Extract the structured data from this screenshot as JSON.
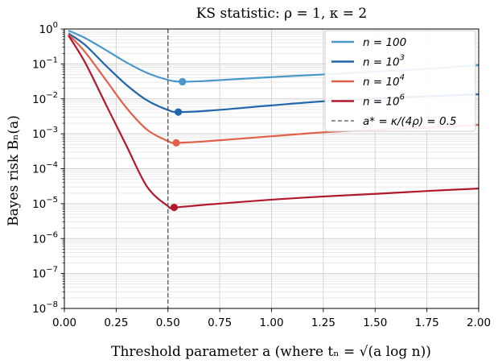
{
  "chart_data": {
    "type": "line",
    "title": "KS statistic: ρ = 1,  κ = 2",
    "xlabel": "Threshold parameter a  (where tₙ = √(a log n))",
    "ylabel": "Bayes risk Bₙ(a)",
    "yscale": "log",
    "xlim": [
      0.0,
      2.0
    ],
    "ylim_exponents": [
      -8,
      0
    ],
    "x_ticks": [
      "0.00",
      "0.25",
      "0.50",
      "0.75",
      "1.00",
      "1.25",
      "1.50",
      "1.75",
      "2.00"
    ],
    "y_ticks": [
      {
        "base": "10",
        "exp": "0"
      },
      {
        "base": "10",
        "exp": "−1"
      },
      {
        "base": "10",
        "exp": "−2"
      },
      {
        "base": "10",
        "exp": "−3"
      },
      {
        "base": "10",
        "exp": "−4"
      },
      {
        "base": "10",
        "exp": "−5"
      },
      {
        "base": "10",
        "exp": "−6"
      },
      {
        "base": "10",
        "exp": "−7"
      },
      {
        "base": "10",
        "exp": "−8"
      }
    ],
    "grid": true,
    "legend_position": "top-right",
    "series": [
      {
        "name": "n = 100",
        "label_main": "n = 100",
        "label_sup": "",
        "color": "#4a98c9",
        "x": [
          0.02,
          0.1,
          0.2,
          0.3,
          0.4,
          0.5,
          0.57,
          0.7,
          1.0,
          1.25,
          1.5,
          1.75,
          2.0
        ],
        "y": [
          0.9,
          0.55,
          0.25,
          0.11,
          0.055,
          0.035,
          0.031,
          0.033,
          0.042,
          0.05,
          0.06,
          0.072,
          0.092
        ],
        "min_x": 0.57,
        "min_y": 0.031
      },
      {
        "name": "n = 10^3",
        "label_main": "n = 10",
        "label_sup": "3",
        "color": "#2166ac",
        "x": [
          0.02,
          0.1,
          0.2,
          0.3,
          0.4,
          0.5,
          0.55,
          0.7,
          1.0,
          1.25,
          1.5,
          1.75,
          2.0
        ],
        "y": [
          0.75,
          0.35,
          0.09,
          0.025,
          0.009,
          0.0048,
          0.0042,
          0.0046,
          0.0065,
          0.0085,
          0.0102,
          0.0118,
          0.0135
        ],
        "min_x": 0.55,
        "min_y": 0.0042
      },
      {
        "name": "n = 10^4",
        "label_main": "n = 10",
        "label_sup": "4",
        "color": "#e0604a",
        "x": [
          0.02,
          0.1,
          0.2,
          0.3,
          0.4,
          0.5,
          0.54,
          0.7,
          1.0,
          1.25,
          1.5,
          1.75,
          2.0
        ],
        "y": [
          0.7,
          0.22,
          0.035,
          0.0055,
          0.0013,
          0.00062,
          0.00055,
          0.00062,
          0.00085,
          0.0011,
          0.0013,
          0.0015,
          0.0018
        ],
        "min_x": 0.54,
        "min_y": 0.00055
      },
      {
        "name": "n = 10^6",
        "label_main": "n = 10",
        "label_sup": "6",
        "color": "#b2182b",
        "x": [
          0.02,
          0.1,
          0.2,
          0.3,
          0.4,
          0.5,
          0.53,
          0.7,
          1.0,
          1.25,
          1.5,
          1.75,
          2.0
        ],
        "y": [
          0.65,
          0.11,
          0.007,
          0.00045,
          3e-05,
          8.5e-06,
          7.8e-06,
          9.5e-06,
          1.3e-05,
          1.6e-05,
          1.9e-05,
          2.3e-05,
          2.7e-05
        ],
        "min_x": 0.53,
        "min_y": 7.8e-06
      }
    ],
    "vline": {
      "x": 0.5,
      "color": "#555555",
      "label": "a* = κ/(4ρ) = 0.5"
    }
  }
}
